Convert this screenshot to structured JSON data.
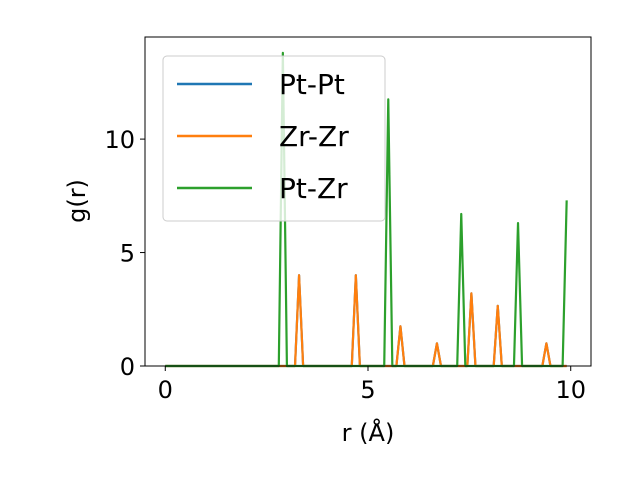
{
  "chart_data": {
    "type": "line",
    "xlabel": "r (Å)",
    "ylabel": "g(r)",
    "xlim": [
      -0.5,
      10.5
    ],
    "ylim": [
      0,
      14.5
    ],
    "xticks": [
      0,
      5,
      10
    ],
    "yticks": [
      0,
      5,
      10
    ],
    "grid": false,
    "legend_position": "top-left",
    "series": [
      {
        "name": "Pt-Pt",
        "color": "#1f77b4",
        "x": [
          0,
          3.2,
          3.3,
          3.4,
          4.6,
          4.7,
          4.8,
          5.7,
          5.8,
          5.9,
          6.6,
          6.7,
          6.8,
          7.45,
          7.55,
          7.65,
          8.1,
          8.2,
          8.3,
          9.3,
          9.4,
          9.5,
          9.9
        ],
        "y": [
          0,
          0,
          4.0,
          0,
          0,
          4.0,
          0,
          0,
          1.75,
          0,
          0,
          1.0,
          0,
          0,
          3.2,
          0,
          0,
          2.65,
          0,
          0,
          1.0,
          0,
          0
        ]
      },
      {
        "name": "Zr-Zr",
        "color": "#ff7f0e",
        "x": [
          0,
          3.2,
          3.3,
          3.4,
          4.6,
          4.7,
          4.8,
          5.7,
          5.8,
          5.9,
          6.6,
          6.7,
          6.8,
          7.45,
          7.55,
          7.65,
          8.1,
          8.2,
          8.3,
          9.3,
          9.4,
          9.5,
          9.9
        ],
        "y": [
          0,
          0,
          4.0,
          0,
          0,
          4.0,
          0,
          0,
          1.75,
          0,
          0,
          1.0,
          0,
          0,
          3.2,
          0,
          0,
          2.65,
          0,
          0,
          1.0,
          0,
          0
        ]
      },
      {
        "name": "Pt-Zr",
        "color": "#2ca02c",
        "x": [
          0,
          2.8,
          2.9,
          3.0,
          5.4,
          5.5,
          5.6,
          7.2,
          7.3,
          7.4,
          8.6,
          8.7,
          8.8,
          9.8,
          9.9
        ],
        "y": [
          0,
          0,
          13.8,
          0,
          0,
          11.75,
          0,
          0,
          6.7,
          0,
          0,
          6.3,
          0,
          0,
          7.3
        ]
      }
    ]
  }
}
